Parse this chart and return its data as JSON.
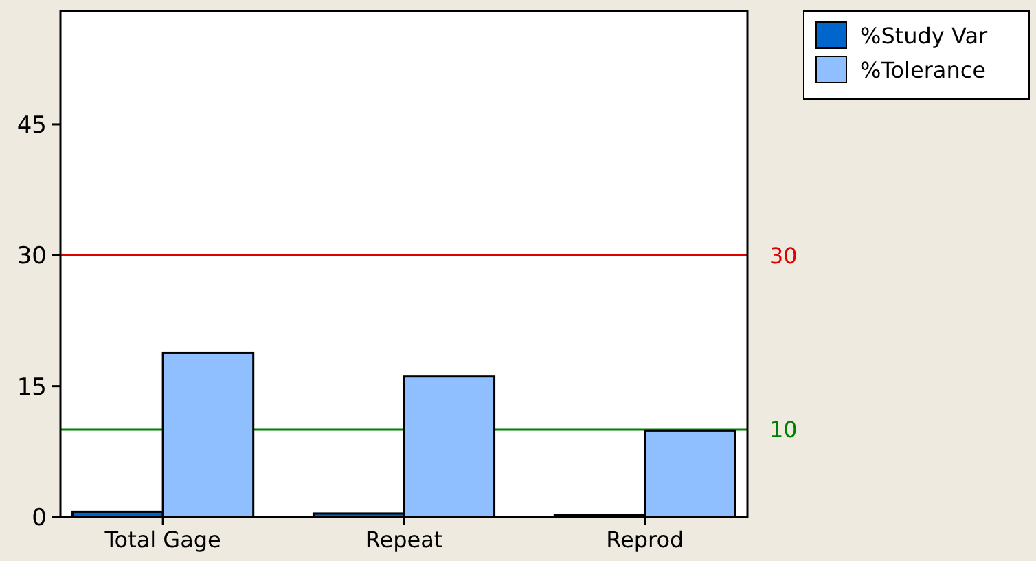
{
  "chart_data": {
    "type": "bar",
    "categories": [
      "Total Gage",
      "Repeat",
      "Reprod"
    ],
    "series": [
      {
        "name": "%Study Var",
        "color": "#0066cc",
        "values": [
          0.6,
          0.4,
          0.2
        ]
      },
      {
        "name": "%Tolerance",
        "color": "#8fbfff",
        "values": [
          18.8,
          16.1,
          9.9
        ]
      }
    ],
    "ylim": [
      0,
      58
    ],
    "yticks": [
      0,
      15,
      30,
      45
    ],
    "grid": false,
    "legend": "top right",
    "ref_lines": [
      {
        "axis": "y",
        "value": 30,
        "label": "30",
        "color": "#e00000"
      },
      {
        "axis": "y",
        "value": 10,
        "label": "10",
        "color": "#008000"
      }
    ]
  }
}
